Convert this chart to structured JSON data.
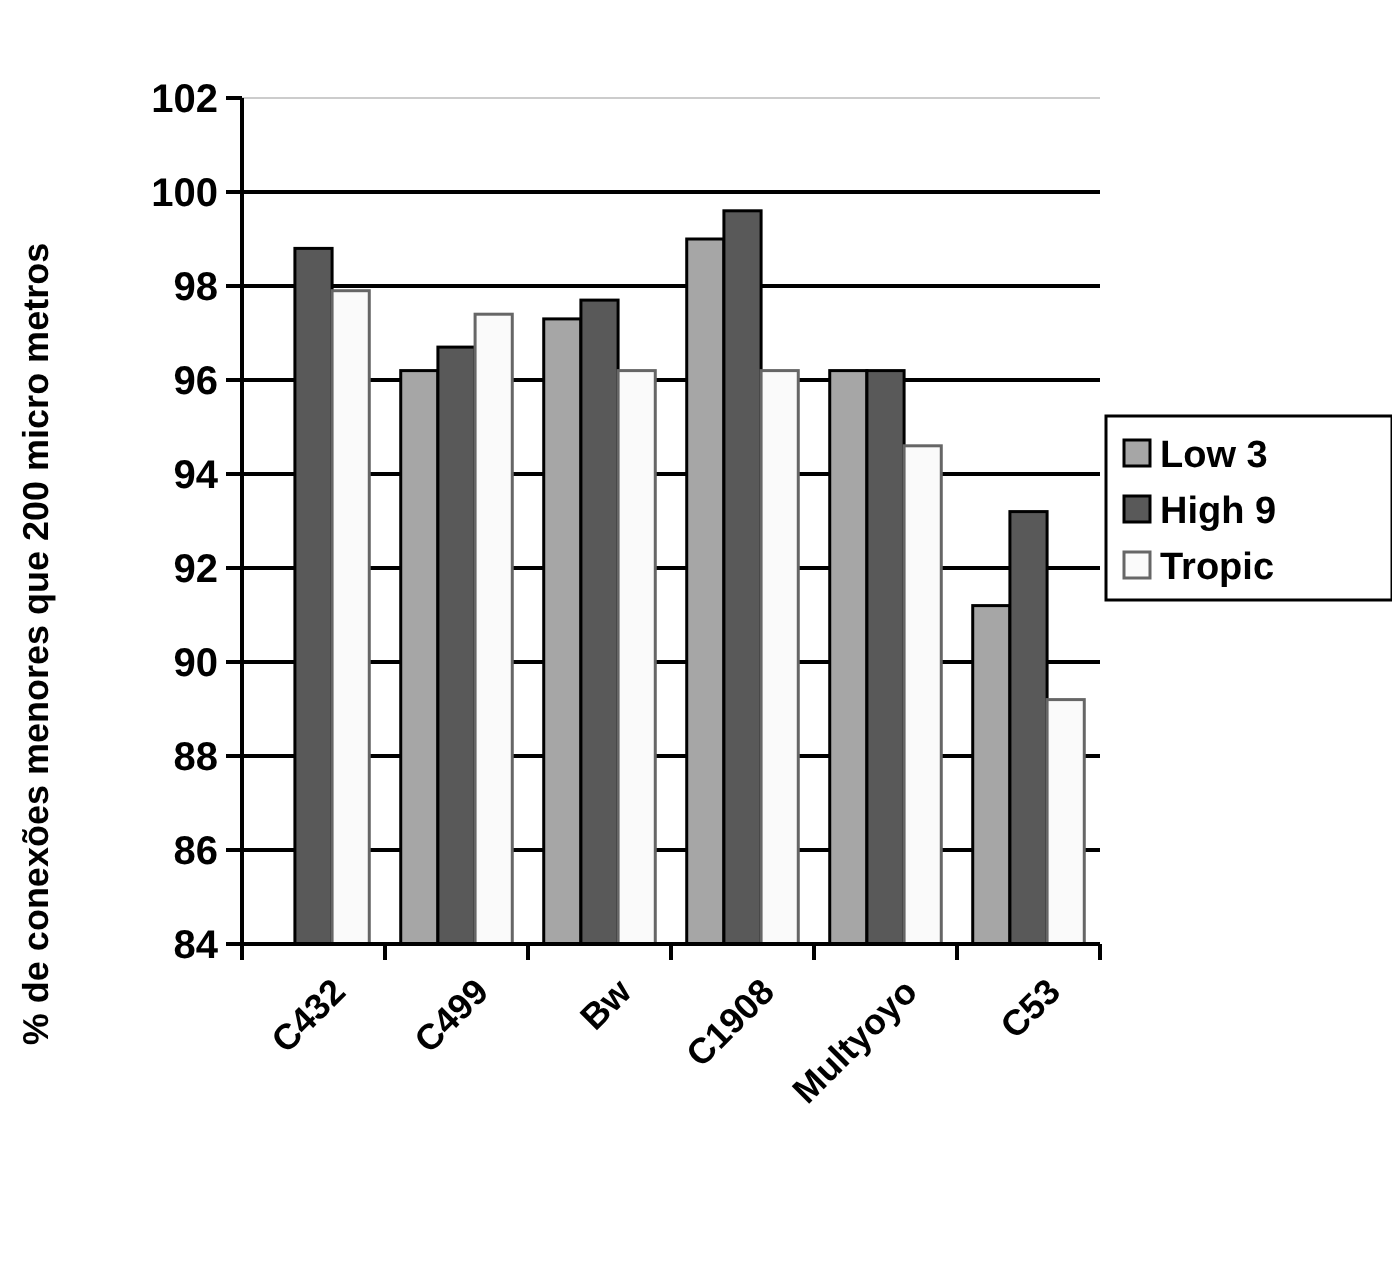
{
  "chart_data": {
    "type": "bar",
    "ylabel": "% de conexões menores que 200 micro metros",
    "categories": [
      "C432",
      "C499",
      "Bw",
      "C1908",
      "Multyoyo",
      "C53"
    ],
    "series": [
      {
        "name": "Low 3",
        "color": "#a6a6a6",
        "values": [
          null,
          96.2,
          97.3,
          99.0,
          96.2,
          91.2
        ]
      },
      {
        "name": "High 9",
        "color": "#595959",
        "values": [
          98.8,
          96.7,
          97.7,
          99.6,
          96.2,
          93.2
        ]
      },
      {
        "name": "Tropic",
        "color": "#fafafa",
        "values": [
          97.9,
          97.4,
          96.2,
          96.2,
          94.6,
          89.2
        ]
      }
    ],
    "ylim": [
      84,
      102
    ],
    "yticks": [
      84,
      86,
      88,
      90,
      92,
      94,
      96,
      98,
      100,
      102
    ],
    "grid": "y",
    "legend": "right"
  }
}
